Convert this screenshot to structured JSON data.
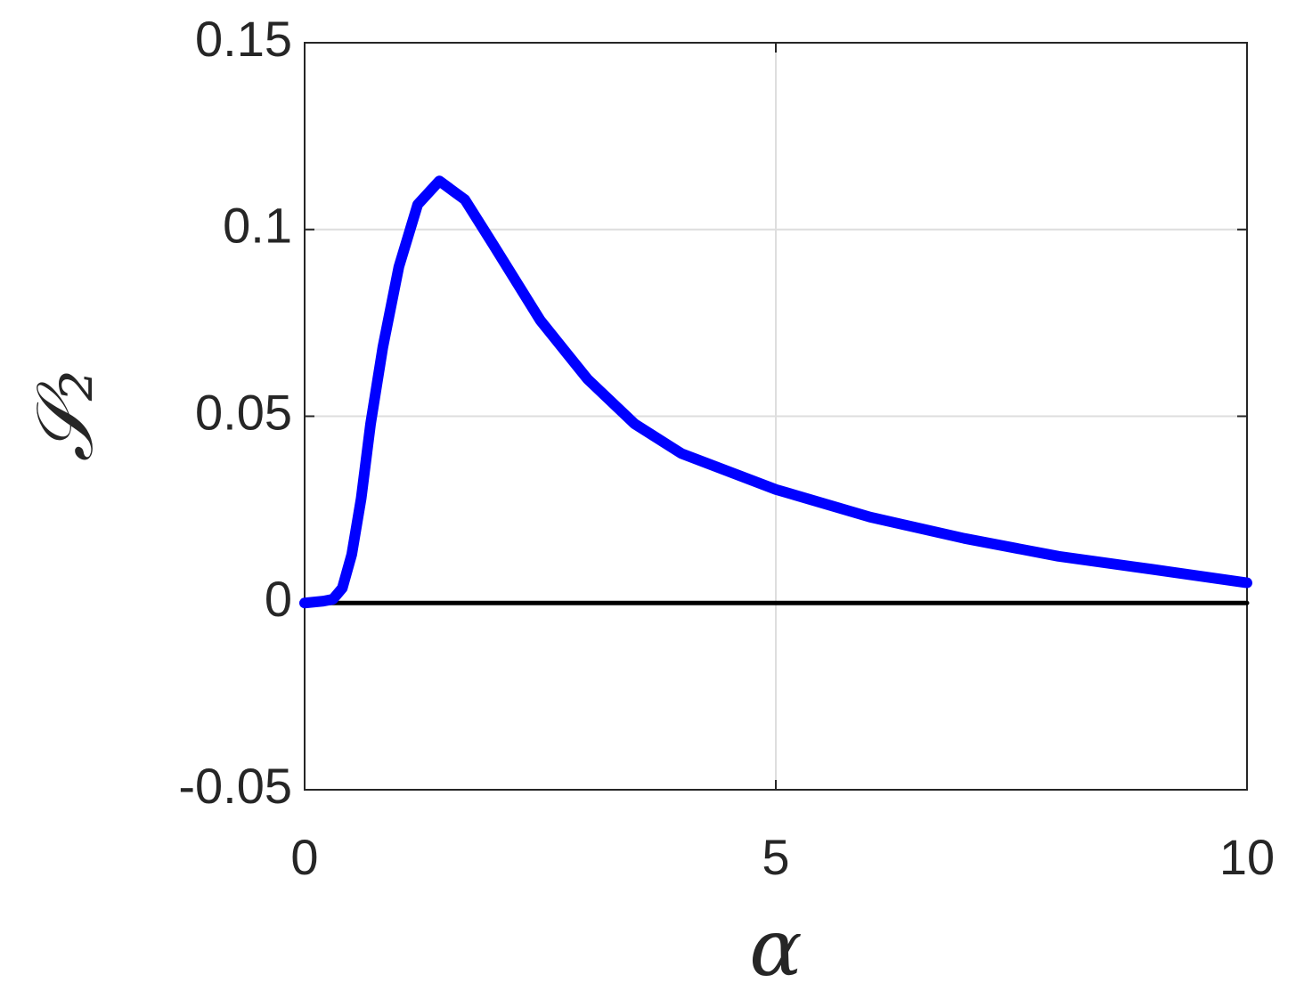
{
  "chart_data": {
    "type": "line",
    "xlabel": "α",
    "ylabel": "𝒮₂",
    "xlim": [
      0,
      10
    ],
    "ylim": [
      -0.05,
      0.15
    ],
    "xticks": [
      0,
      5,
      10
    ],
    "yticks": [
      -0.05,
      0,
      0.05,
      0.1,
      0.15
    ],
    "grid": true,
    "series": [
      {
        "color": "#0000ff",
        "x": [
          0,
          0.2,
          0.3,
          0.4,
          0.5,
          0.6,
          0.7,
          0.83,
          1.0,
          1.2,
          1.43,
          1.7,
          2.0,
          2.5,
          3.0,
          3.5,
          4.0,
          5.0,
          6.0,
          7.0,
          8.0,
          9.0,
          10.0
        ],
        "values": [
          0,
          0.0005,
          0.001,
          0.004,
          0.013,
          0.028,
          0.048,
          0.0685,
          0.09,
          0.1067,
          0.113,
          0.108,
          0.096,
          0.0757,
          0.06,
          0.048,
          0.04,
          0.0304,
          0.023,
          0.0173,
          0.0125,
          0.009,
          0.0054
        ]
      },
      {
        "color": "#000000",
        "x": [
          0,
          10
        ],
        "values": [
          0,
          0
        ]
      }
    ]
  }
}
